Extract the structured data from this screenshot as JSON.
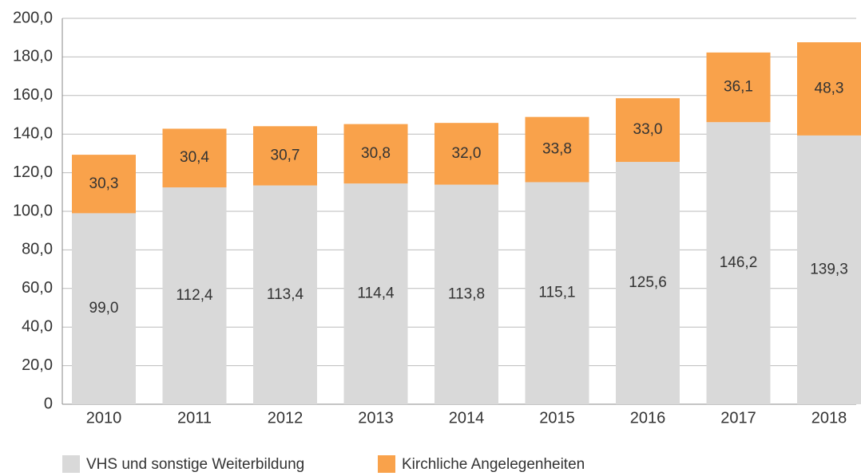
{
  "chart_data": {
    "type": "stacked_bar",
    "categories": [
      "2010",
      "2011",
      "2012",
      "2013",
      "2014",
      "2015",
      "2016",
      "2017",
      "2018"
    ],
    "series": [
      {
        "name": "VHS und sonstige Weiterbildung",
        "color": "#d9d9d9",
        "values": [
          99.0,
          112.4,
          113.4,
          114.4,
          113.8,
          115.1,
          125.6,
          146.2,
          139.3
        ],
        "value_labels": [
          "99,0",
          "112,4",
          "113,4",
          "114,4",
          "113,8",
          "115,1",
          "125,6",
          "146,2",
          "139,3"
        ]
      },
      {
        "name": "Kirchliche Angelegenheiten",
        "color": "#f9a24b",
        "values": [
          30.3,
          30.4,
          30.7,
          30.8,
          32.0,
          33.8,
          33.0,
          36.1,
          48.3
        ],
        "value_labels": [
          "30,3",
          "30,4",
          "30,7",
          "30,8",
          "32,0",
          "33,8",
          "33,0",
          "36,1",
          "48,3"
        ]
      }
    ],
    "ylim": [
      0,
      200
    ],
    "yticks": [
      0,
      {
        "value": 20,
        "label": "20,0"
      },
      {
        "value": 40,
        "label": "40,0"
      },
      {
        "value": 60,
        "label": "60,0"
      },
      {
        "value": 80,
        "label": "80,0"
      },
      {
        "value": 100,
        "label": "100,0"
      },
      {
        "value": 120,
        "label": "120,0"
      },
      {
        "value": 140,
        "label": "140,0"
      },
      {
        "value": 160,
        "label": "160,0"
      },
      {
        "value": 180,
        "label": "180,0"
      },
      {
        "value": 200,
        "label": "200,0"
      }
    ],
    "grid": true,
    "legend": "bottom-left"
  }
}
